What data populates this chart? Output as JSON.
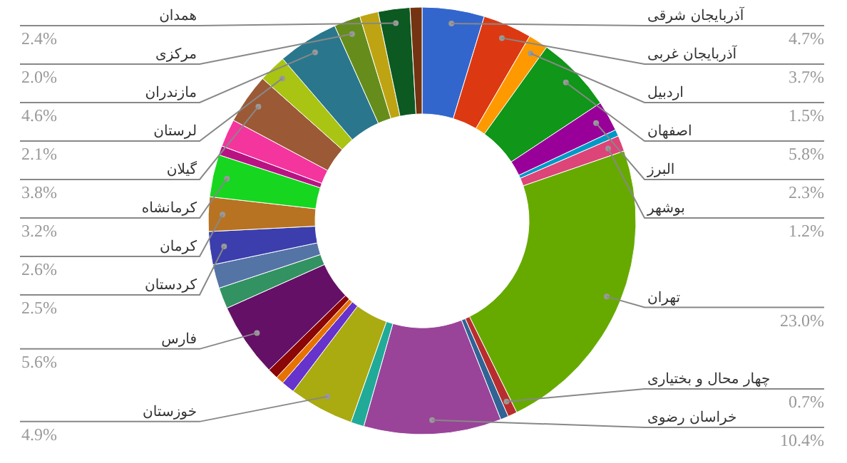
{
  "chart_data": {
    "type": "donut",
    "categories": [
      "آذربایجان شرقی",
      "آذربایجان غربی",
      "اردبیل",
      "اصفهان",
      "البرز",
      null,
      "بوشهر",
      "تهران",
      "چهار محال و بختیاری",
      null,
      "خراسان رضوی",
      null,
      "خوزستان",
      null,
      null,
      null,
      "فارس",
      null,
      null,
      "کردستان",
      "کرمان",
      "کرمانشاه",
      null,
      null,
      "گیلان",
      "لرستان",
      "مازندران",
      "مرکزی",
      null,
      "همدان",
      null
    ],
    "values": [
      4.7,
      3.7,
      1.5,
      5.8,
      2.3,
      0.5,
      1.2,
      23.0,
      0.7,
      0.6,
      10.4,
      1.0,
      4.9,
      1.0,
      0.6,
      0.8,
      5.6,
      1.6,
      1.8,
      2.5,
      2.6,
      3.2,
      0.7,
      2.1,
      3.8,
      2.1,
      4.6,
      2.0,
      1.4,
      2.4,
      0.9
    ],
    "value_labels": [
      "4.7%",
      "3.7%",
      "1.5%",
      "5.8%",
      "2.3%",
      null,
      "1.2%",
      "23.0%",
      "0.7%",
      null,
      "10.4%",
      null,
      "4.9%",
      null,
      null,
      null,
      "5.6%",
      null,
      null,
      "2.5%",
      "2.6%",
      "3.2%",
      null,
      null,
      "3.8%",
      "2.1%",
      "4.6%",
      "2.0%",
      null,
      "2.4%",
      null
    ],
    "colors": [
      "#3366cc",
      "#dc3912",
      "#ff9900",
      "#109618",
      "#990099",
      "#0099c6",
      "#dd4477",
      "#66aa00",
      "#b82e2e",
      "#316395",
      "#994499",
      "#22aa99",
      "#aaaa11",
      "#6633cc",
      "#e67300",
      "#8b0707",
      "#651067",
      "#329262",
      "#5574a6",
      "#3b3eac",
      "#b77322",
      "#16d620",
      "#b91383",
      "#f4359e",
      "#9c5935",
      "#a9c413",
      "#2a778d",
      "#668d1c",
      "#bea413",
      "#0c5922",
      "#743411"
    ]
  }
}
